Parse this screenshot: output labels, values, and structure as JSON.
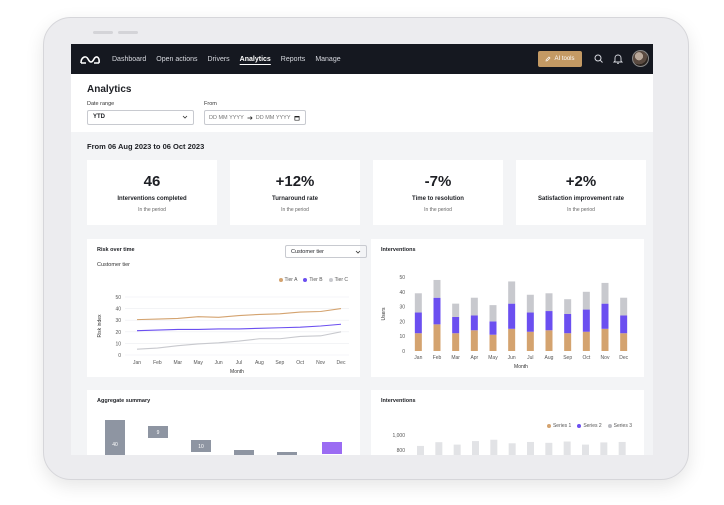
{
  "nav": {
    "links": [
      "Dashboard",
      "Open actions",
      "Drivers",
      "Analytics",
      "Reports",
      "Manage"
    ],
    "ai_tools": "AI tools"
  },
  "header": {
    "title": "Analytics",
    "date_range_label": "Date range",
    "date_range_value": "YTD",
    "from_label": "From",
    "from_placeholder": "DD MM YYYY",
    "to_placeholder": "DD MM YYYY"
  },
  "period": "From 06 Aug 2023 to 06 Oct 2023",
  "kpis": [
    {
      "value": "46",
      "name": "Interventions completed",
      "sub": "In the period"
    },
    {
      "value": "+12%",
      "name": "Turnaround rate",
      "sub": "In the period"
    },
    {
      "value": "-7%",
      "name": "Time to resolution",
      "sub": "In the period"
    },
    {
      "value": "+2%",
      "name": "Satisfaction improvement rate",
      "sub": "In the period"
    }
  ],
  "risk_card": {
    "title": "Risk over time",
    "subtitle": "Customer tier",
    "dropdown": "Customer tier"
  },
  "interventions_card": {
    "title": "Interventions"
  },
  "aggregate_card": {
    "title": "Aggregate summary"
  },
  "interventions_card_2": {
    "title": "Interventions"
  },
  "colors": {
    "tier_a": "#d4a36f",
    "tier_b": "#6b4ff0",
    "tier_c": "#c8c9ce",
    "accent": "#c49a64"
  },
  "chart_data": [
    {
      "type": "line",
      "title": "Risk over time",
      "xlabel": "Month",
      "ylabel": "Risk index",
      "categories": [
        "Jan",
        "Feb",
        "Mar",
        "May",
        "Jun",
        "Jul",
        "Aug",
        "Sep",
        "Oct",
        "Nov",
        "Dec"
      ],
      "ylim": [
        0,
        50
      ],
      "yticks": [
        0,
        10,
        20,
        30,
        40,
        50
      ],
      "legend_position": "top-right",
      "series": [
        {
          "name": "Tier A",
          "values": [
            30.5,
            31,
            31.5,
            33,
            32.5,
            34,
            35,
            35.5,
            37,
            37.5,
            40
          ]
        },
        {
          "name": "Tier B",
          "values": [
            21,
            21.5,
            22,
            22,
            22.5,
            22.5,
            23,
            23.5,
            24,
            25,
            26.5
          ]
        },
        {
          "name": "Tier C",
          "values": [
            5,
            6,
            8,
            9.5,
            10.5,
            12,
            14,
            14,
            16,
            16.5,
            20
          ]
        }
      ]
    },
    {
      "type": "bar",
      "title": "Interventions",
      "xlabel": "Month",
      "ylabel": "Users",
      "categories": [
        "Jan",
        "Feb",
        "Mar",
        "Apr",
        "May",
        "Jun",
        "Jul",
        "Aug",
        "Sep",
        "Oct",
        "Nov",
        "Dec"
      ],
      "ylim": [
        0,
        50
      ],
      "yticks": [
        0,
        10,
        20,
        30,
        40,
        50
      ],
      "stacked": true,
      "series": [
        {
          "name": "Tier A",
          "values": [
            12,
            18,
            12,
            14,
            11,
            15,
            13,
            14,
            12,
            13,
            15,
            12
          ]
        },
        {
          "name": "Tier B",
          "values": [
            14,
            18,
            11,
            10,
            9,
            17,
            13,
            13,
            13,
            15,
            17,
            12
          ]
        },
        {
          "name": "Tier C",
          "values": [
            13,
            12,
            9,
            12,
            11,
            15,
            12,
            12,
            10,
            12,
            14,
            12
          ]
        }
      ]
    },
    {
      "type": "bar",
      "title": "Aggregate summary",
      "values": [
        40,
        9,
        10,
        0,
        0,
        0,
        0,
        0
      ],
      "labels": [
        "40",
        "9",
        "10",
        "",
        "",
        "",
        "",
        ""
      ]
    },
    {
      "type": "bar",
      "title": "Interventions",
      "yticks": [
        "1,000",
        "800"
      ],
      "legend_position": "top-right",
      "series": [
        {
          "name": "Series 1",
          "color": "#d4a36f"
        },
        {
          "name": "Series 2",
          "color": "#6b4ff0"
        },
        {
          "name": "Series 3",
          "color": "#b9bac0"
        }
      ],
      "values": [
        640,
        810,
        700,
        860,
        920,
        760,
        820,
        780,
        840,
        700,
        800,
        820
      ]
    }
  ]
}
